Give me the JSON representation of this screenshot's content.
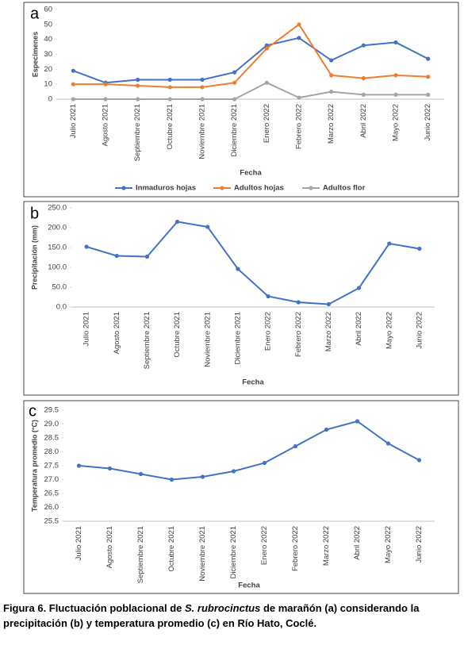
{
  "chart_data": [
    {
      "type": "line",
      "panel": "a",
      "x_label": "Fecha",
      "y_label": "Especímenes",
      "categories": [
        "Julio 2021",
        "Agosto 2021",
        "Septiembre 2021",
        "Octubre 2021",
        "Noviembre 2021",
        "Diciembre 2021",
        "Enero 2022",
        "Febrero 2022",
        "Marzo 2022",
        "Abril 2022",
        "Mayo 2022",
        "Junio 2022"
      ],
      "series": [
        {
          "name": "Inmaduros hojas",
          "color": "#4472c4",
          "values": [
            19,
            11,
            13,
            13,
            13,
            18,
            36,
            41,
            26,
            36,
            38,
            27
          ]
        },
        {
          "name": "Adultos hojas",
          "color": "#ed7d31",
          "values": [
            10,
            10,
            9,
            8,
            8,
            11,
            34,
            50,
            16,
            14,
            16,
            15
          ]
        },
        {
          "name": "Adultos flor",
          "color": "#a5a5a5",
          "values": [
            0,
            0,
            0,
            0,
            0,
            0,
            11,
            1,
            5,
            3,
            3,
            3
          ]
        }
      ],
      "ylim": [
        0,
        60
      ],
      "yticks": [
        0,
        10,
        20,
        30,
        40,
        50,
        60
      ],
      "legend": "bottom"
    },
    {
      "type": "line",
      "panel": "b",
      "x_label": "Fecha",
      "y_label": "Precipitación (mm)",
      "categories": [
        "Julio 2021",
        "Agosto 2021",
        "Septiembre 2021",
        "Octubre 2021",
        "Noviembre 2021",
        "Diciembre 2021",
        "Enero 2022",
        "Febrero 2022",
        "Marzo 2022",
        "Abril 2022",
        "Mayo 2022",
        "Junio 2022"
      ],
      "series": [
        {
          "color": "#4472c4",
          "values": [
            152,
            129,
            127,
            215,
            202,
            96,
            27,
            12,
            7,
            48,
            160,
            147
          ]
        }
      ],
      "ylim": [
        0,
        250
      ],
      "yticks": [
        {
          "value": 0,
          "label": "0.0"
        },
        {
          "value": 50,
          "label": "50.0"
        },
        {
          "value": 100,
          "label": "100.0"
        },
        {
          "value": 150,
          "label": "150.0"
        },
        {
          "value": 200,
          "label": "200.0"
        },
        {
          "value": 250,
          "label": "250.0"
        }
      ]
    },
    {
      "type": "line",
      "panel": "c",
      "x_label": "Fecha",
      "y_label": "Temperatura promedio (°C)",
      "categories": [
        "Julio 2021",
        "Agosto 2021",
        "Septiembre 2021",
        "Octubre 2021",
        "Noviembre 2021",
        "Diciembre 2021",
        "Enero 2022",
        "Febrero 2022",
        "Marzo 2022",
        "Abril 2022",
        "Mayo 2022",
        "Junio 2022"
      ],
      "series": [
        {
          "color": "#4472c4",
          "values": [
            27.5,
            27.4,
            27.2,
            27.0,
            27.1,
            27.3,
            27.6,
            28.2,
            28.8,
            29.1,
            28.3,
            27.7
          ]
        }
      ],
      "ylim": [
        25.5,
        29.5
      ],
      "yticks": [
        25.5,
        {
          "value": 26,
          "label": "26.0"
        },
        26.5,
        {
          "value": 27,
          "label": "27.0"
        },
        27.5,
        {
          "value": 28,
          "label": "28.0"
        },
        28.5,
        {
          "value": 29,
          "label": "29.0"
        },
        29.5
      ]
    }
  ],
  "caption": [
    "Figura 6. Fluctuación poblacional de ",
    "S. rubrocinctus",
    " de marañón (a) considerando la precipitación (b) y temperatura promedio (c) en Río Hato, Coclé."
  ]
}
